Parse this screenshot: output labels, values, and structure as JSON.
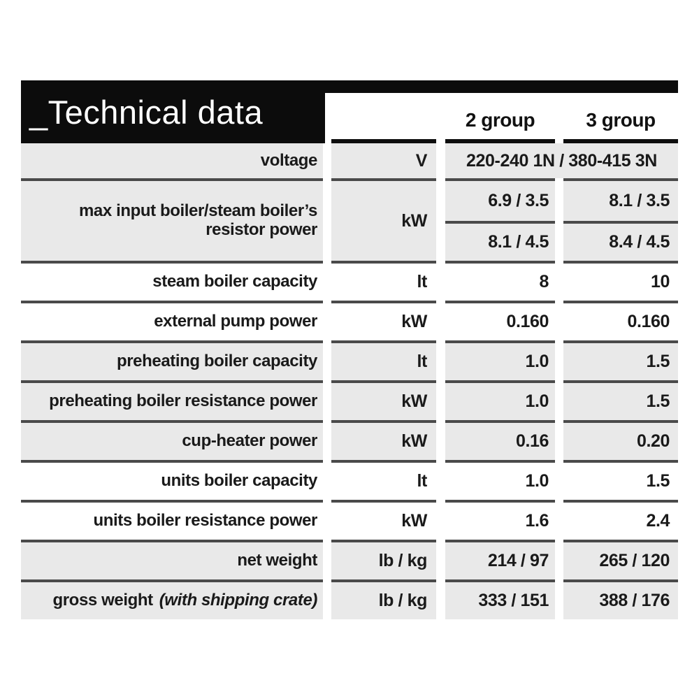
{
  "header": {
    "title_prefix": "_",
    "title": "Technical data",
    "columns": [
      "2 group",
      "3 group"
    ]
  },
  "table": {
    "rows": [
      {
        "label": "voltage",
        "unit": "V",
        "value_span": "220-240 1N / 380-415 3N"
      },
      {
        "label": "max input boiler/steam boiler’s resistor power",
        "unit": "kW",
        "sub_rows": [
          {
            "group2": "6.9 / 3.5",
            "group3": "8.1 / 3.5"
          },
          {
            "group2": "8.1 / 4.5",
            "group3": "8.4 / 4.5"
          }
        ]
      },
      {
        "label": "steam boiler capacity",
        "unit": "lt",
        "group2": "8",
        "group3": "10"
      },
      {
        "label": "external pump power",
        "unit": "kW",
        "group2": "0.160",
        "group3": "0.160"
      },
      {
        "label": "preheating boiler capacity",
        "unit": "lt",
        "group2": "1.0",
        "group3": "1.5"
      },
      {
        "label": "preheating boiler resistance power",
        "unit": "kW",
        "group2": "1.0",
        "group3": "1.5"
      },
      {
        "label": "cup-heater power",
        "unit": "kW",
        "group2": "0.16",
        "group3": "0.20"
      },
      {
        "label": "units boiler capacity",
        "unit": "lt",
        "group2": "1.0",
        "group3": "1.5"
      },
      {
        "label": "units boiler resistance power",
        "unit": "kW",
        "group2": "1.6",
        "group3": "2.4"
      },
      {
        "label": "net weight",
        "unit": "lb / kg",
        "group2": "214 / 97",
        "group3": "265 / 120"
      },
      {
        "label": "gross weight",
        "label_note": "(with shipping crate)",
        "unit": "lb / kg",
        "group2": "333 / 151",
        "group3": "388 / 176"
      }
    ]
  },
  "colors": {
    "banner_black": "#0c0c0c",
    "row_gray": "#e9e9e9",
    "separator": "#4a4a4a",
    "text": "#1a1a1a"
  }
}
